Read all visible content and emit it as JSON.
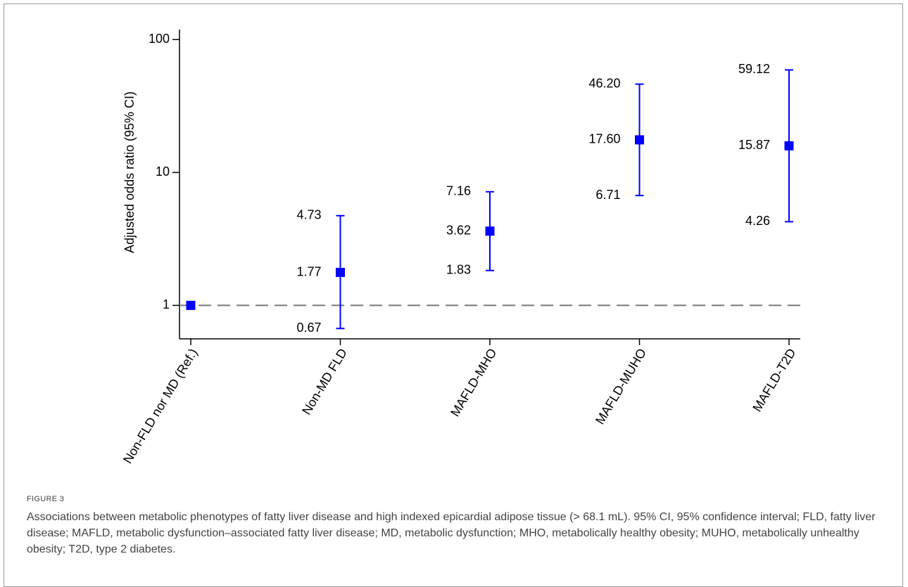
{
  "chart_data": {
    "type": "errorbar",
    "ylabel": "Adjusted odds ratio (95% CI)",
    "categories": [
      "Non-FLD nor MD (Ref.)",
      "Non-MD FLD",
      "MAFLD-MHO",
      "MAFLD-MUHO",
      "MAFLD-T2D"
    ],
    "values": [
      1,
      1.77,
      3.62,
      17.6,
      15.87
    ],
    "value_labels": [
      null,
      "1.77",
      "3.62",
      "17.60",
      "15.87"
    ],
    "lower": [
      null,
      0.67,
      1.83,
      6.71,
      4.26
    ],
    "lower_labels": [
      null,
      "0.67",
      "1.83",
      "6.71",
      "4.26"
    ],
    "upper": [
      null,
      4.73,
      7.16,
      46.2,
      59.12
    ],
    "upper_labels": [
      null,
      "4.73",
      "7.16",
      "46.20",
      "59.12"
    ],
    "color": "#0000ff",
    "log_y": true,
    "ylim": [
      0.56,
      119
    ],
    "yticks": [
      1,
      10,
      100
    ],
    "reference_line": 1
  },
  "figure": {
    "label": "FIGURE 3",
    "caption": "Associations between metabolic phenotypes of fatty liver disease and high indexed epicardial adipose tissue (> 68.1 mL). 95% CI, 95% confidence interval; FLD, fatty liver disease; MAFLD, metabolic dysfunction–associated fatty liver disease; MD, metabolic dysfunction; MHO, metabolically healthy obesity; MUHO, metabolically unhealthy obesity; T2D, type 2 diabetes."
  }
}
